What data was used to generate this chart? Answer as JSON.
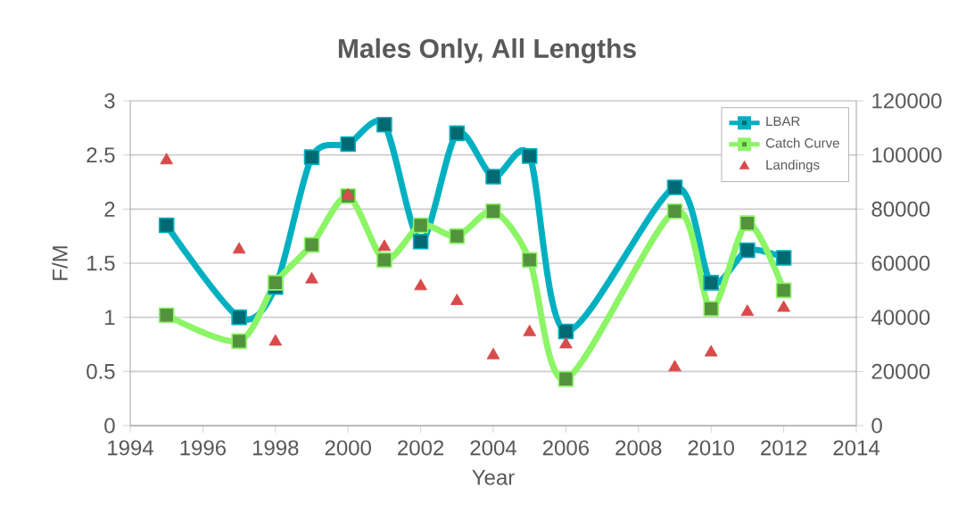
{
  "chart_data": {
    "type": "line",
    "title": "Males Only, All Lengths",
    "xlabel": "Year",
    "ylabel": "F/M",
    "xlim": [
      1994,
      2014
    ],
    "xticks": [
      1994,
      1996,
      1998,
      2000,
      2002,
      2004,
      2006,
      2008,
      2010,
      2012,
      2014
    ],
    "ylim": [
      0,
      3
    ],
    "yticks": [
      0,
      0.5,
      1,
      1.5,
      2,
      2.5,
      3
    ],
    "y2lim": [
      0,
      120000
    ],
    "y2ticks": [
      0,
      20000,
      40000,
      60000,
      80000,
      100000,
      120000
    ],
    "grid": "y",
    "legend": "top right",
    "series": [
      {
        "name": "LBAR",
        "marker": "square",
        "color": "#00b0c0",
        "x": [
          1995,
          1997,
          1998,
          1999,
          2000,
          2001,
          2002,
          2003,
          2004,
          2005,
          2006,
          2009,
          2010,
          2011,
          2012
        ],
        "values": [
          1.85,
          1.0,
          1.28,
          2.48,
          2.6,
          2.78,
          1.7,
          2.7,
          2.3,
          2.49,
          0.87,
          2.2,
          1.32,
          1.62,
          1.55
        ]
      },
      {
        "name": "Catch Curve",
        "marker": "square",
        "color": "#8cf566",
        "x": [
          1995,
          1997,
          1998,
          1999,
          2000,
          2001,
          2002,
          2003,
          2004,
          2005,
          2006,
          2009,
          2010,
          2011,
          2012
        ],
        "values": [
          1.02,
          0.78,
          1.32,
          1.67,
          2.12,
          1.53,
          1.85,
          1.75,
          1.98,
          1.53,
          0.43,
          1.98,
          1.08,
          1.87,
          1.25
        ]
      },
      {
        "name": "Landings",
        "type": "scatter",
        "marker": "triangle",
        "axis": "y2",
        "color": "#d94a4a",
        "x": [
          1995,
          1997,
          1998,
          1999,
          2000,
          2001,
          2002,
          2003,
          2004,
          2005,
          2006,
          2009,
          2010,
          2011,
          2012
        ],
        "values": [
          98000,
          65000,
          31000,
          54000,
          85000,
          66000,
          51500,
          46000,
          26000,
          34500,
          30000,
          21500,
          27000,
          42000,
          43500
        ]
      }
    ]
  }
}
